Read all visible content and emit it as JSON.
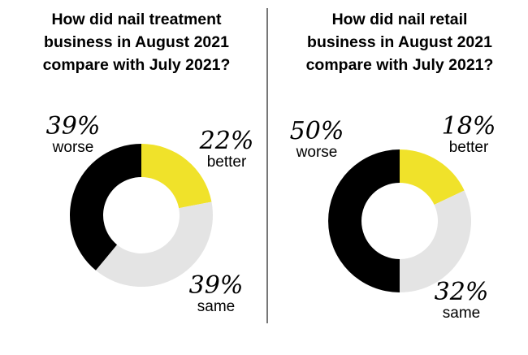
{
  "colors": {
    "better": "#f0e22a",
    "same": "#e4e4e4",
    "worse": "#000000",
    "divider": "#777777"
  },
  "chart_data": [
    {
      "type": "pie",
      "title_lines": [
        "How did nail treatment",
        "business in August 2021",
        "compare with July 2021?"
      ],
      "slices": [
        {
          "label": "better",
          "value": 22,
          "display": "22%"
        },
        {
          "label": "same",
          "value": 39,
          "display": "39%"
        },
        {
          "label": "worse",
          "value": 39,
          "display": "39%"
        }
      ]
    },
    {
      "type": "pie",
      "title_lines": [
        "How did nail retail",
        "business in August 2021",
        "compare with July 2021?"
      ],
      "slices": [
        {
          "label": "better",
          "value": 18,
          "display": "18%"
        },
        {
          "label": "same",
          "value": 32,
          "display": "32%"
        },
        {
          "label": "worse",
          "value": 50,
          "display": "50%"
        }
      ]
    }
  ]
}
